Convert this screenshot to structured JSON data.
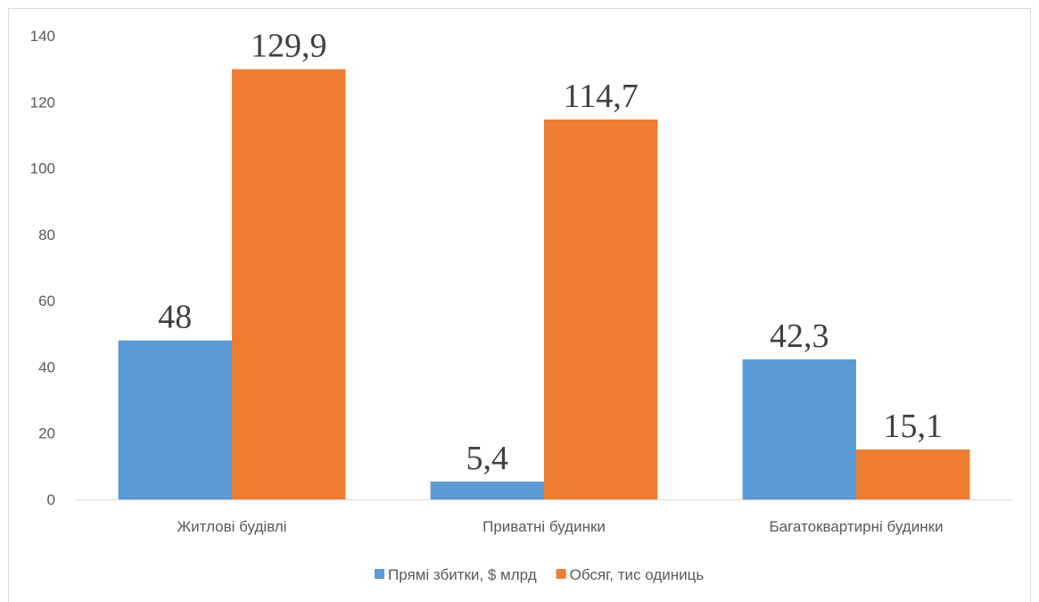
{
  "chart_data": {
    "type": "bar",
    "categories": [
      "Житлові будівлі",
      "Приватні будинки",
      "Багатоквартирні будинки"
    ],
    "series": [
      {
        "name": "Прямі збитки, $ млрд",
        "color": "#5b9bd5",
        "values": [
          48,
          5.4,
          42.3
        ],
        "value_labels": [
          "48",
          "5,4",
          "42,3"
        ]
      },
      {
        "name": "Обсяг, тис одиниць",
        "color": "#ed7d31",
        "values": [
          129.9,
          114.7,
          15.1
        ],
        "value_labels": [
          "129,9",
          "114,7",
          "15,1"
        ]
      }
    ],
    "ylim": [
      0,
      140
    ],
    "yticks": [
      0,
      20,
      40,
      60,
      80,
      100,
      120,
      140
    ],
    "grid": false,
    "legend": "bottom"
  }
}
